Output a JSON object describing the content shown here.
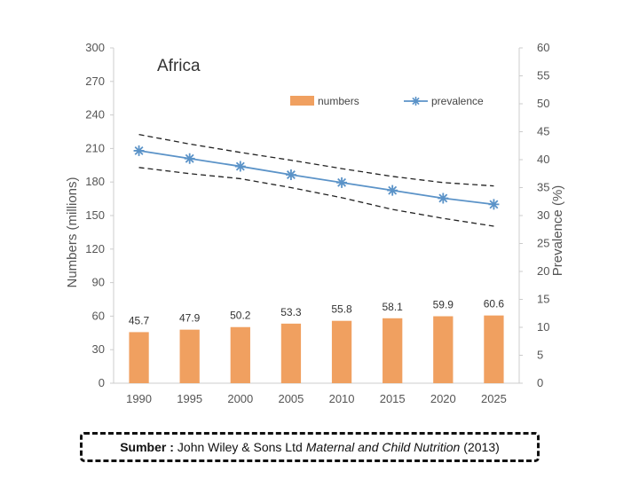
{
  "chart_data": {
    "type": "bar+line",
    "title": "Africa",
    "categories": [
      "1990",
      "1995",
      "2000",
      "2005",
      "2010",
      "2015",
      "2020",
      "2025"
    ],
    "series": [
      {
        "name": "numbers",
        "kind": "bar",
        "axis": "left",
        "color": "#F0A060",
        "values": [
          45.7,
          47.9,
          50.2,
          53.3,
          55.8,
          58.1,
          59.9,
          60.6
        ]
      },
      {
        "name": "prevalence",
        "kind": "line",
        "axis": "right",
        "color": "#5B93C8",
        "marker": "asterisk",
        "values": [
          41.6,
          40.2,
          38.8,
          37.3,
          35.9,
          34.5,
          33.1,
          32.0
        ]
      }
    ],
    "confidence_bounds": {
      "color": "#222222",
      "upper": [
        44.5,
        42.8,
        41.3,
        39.9,
        38.4,
        37.0,
        35.9,
        35.3
      ],
      "lower": [
        38.6,
        37.5,
        36.6,
        35.0,
        33.2,
        31.1,
        29.5,
        28.1
      ]
    },
    "ylabel": "Numbers (millions)",
    "y2label": "Prevalence (%)",
    "ylim": [
      0,
      300
    ],
    "y2lim": [
      0,
      60
    ],
    "yticks": [
      0,
      30,
      60,
      90,
      120,
      150,
      180,
      210,
      240,
      270,
      300
    ],
    "y2ticks": [
      0,
      5,
      10,
      15,
      20,
      25,
      30,
      35,
      40,
      45,
      50,
      55,
      60
    ],
    "grid": false,
    "legend": "top-right"
  },
  "source": {
    "label": "Sumber :",
    "publisher": "John Wiley & Sons Ltd",
    "title": "Maternal and Child Nutrition",
    "year": "(2013)"
  }
}
